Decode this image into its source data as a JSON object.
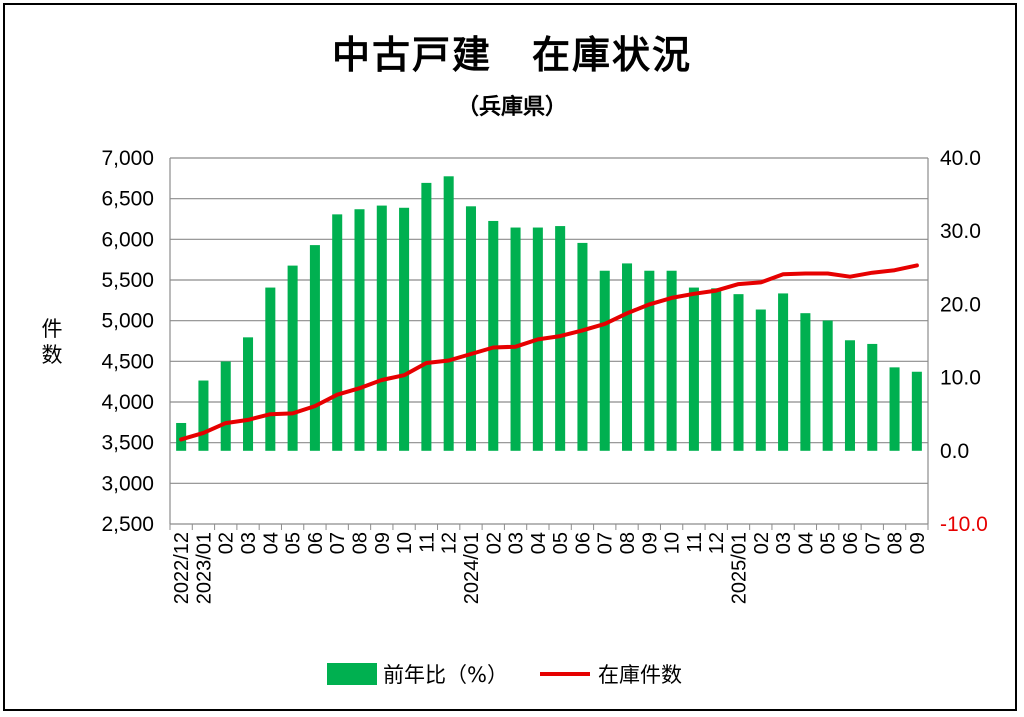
{
  "chart_data": {
    "type": "bar+line",
    "title": "中古戸建　在庫状況",
    "subtitle": "（兵庫県）",
    "ylabel_left": "件数",
    "categories": [
      "2022/12",
      "2023/01",
      "02",
      "03",
      "04",
      "05",
      "06",
      "07",
      "08",
      "09",
      "10",
      "11",
      "12",
      "2024/01",
      "02",
      "03",
      "04",
      "05",
      "06",
      "07",
      "08",
      "09",
      "10",
      "11",
      "12",
      "2025/01",
      "02",
      "03",
      "04",
      "05",
      "06",
      "07",
      "08",
      "09"
    ],
    "left_axis": {
      "min": 2500,
      "max": 7000,
      "ticks": [
        "2,500",
        "3,000",
        "3,500",
        "4,000",
        "4,500",
        "5,000",
        "5,500",
        "6,000",
        "6,500",
        "7,000"
      ]
    },
    "right_axis": {
      "min": -10,
      "max": 40,
      "ticks": [
        "-10.0",
        "0.0",
        "10.0",
        "20.0",
        "30.0",
        "40.0"
      ],
      "negative_color": "#e60000"
    },
    "series": [
      {
        "name": "前年比（%）",
        "kind": "bar",
        "axis": "right",
        "color": "#00b050",
        "values": [
          3.8,
          9.6,
          12.2,
          15.5,
          22.3,
          25.3,
          28.1,
          32.3,
          33.0,
          33.5,
          33.2,
          36.6,
          37.5,
          33.4,
          31.4,
          30.5,
          30.5,
          30.7,
          28.4,
          24.6,
          25.6,
          24.6,
          24.6,
          22.3,
          22.2,
          21.4,
          19.3,
          21.5,
          18.8,
          17.8,
          15.1,
          14.6,
          11.4,
          10.8
        ]
      },
      {
        "name": "在庫件数",
        "kind": "line",
        "axis": "left",
        "color": "#e60000",
        "values": [
          3540,
          3620,
          3740,
          3780,
          3850,
          3860,
          3950,
          4090,
          4170,
          4270,
          4330,
          4480,
          4510,
          4590,
          4670,
          4680,
          4770,
          4810,
          4880,
          4960,
          5090,
          5200,
          5280,
          5330,
          5370,
          5450,
          5470,
          5570,
          5580,
          5580,
          5540,
          5590,
          5620,
          5680
        ]
      }
    ],
    "legend_position": "bottom",
    "grid": "horizontal"
  }
}
